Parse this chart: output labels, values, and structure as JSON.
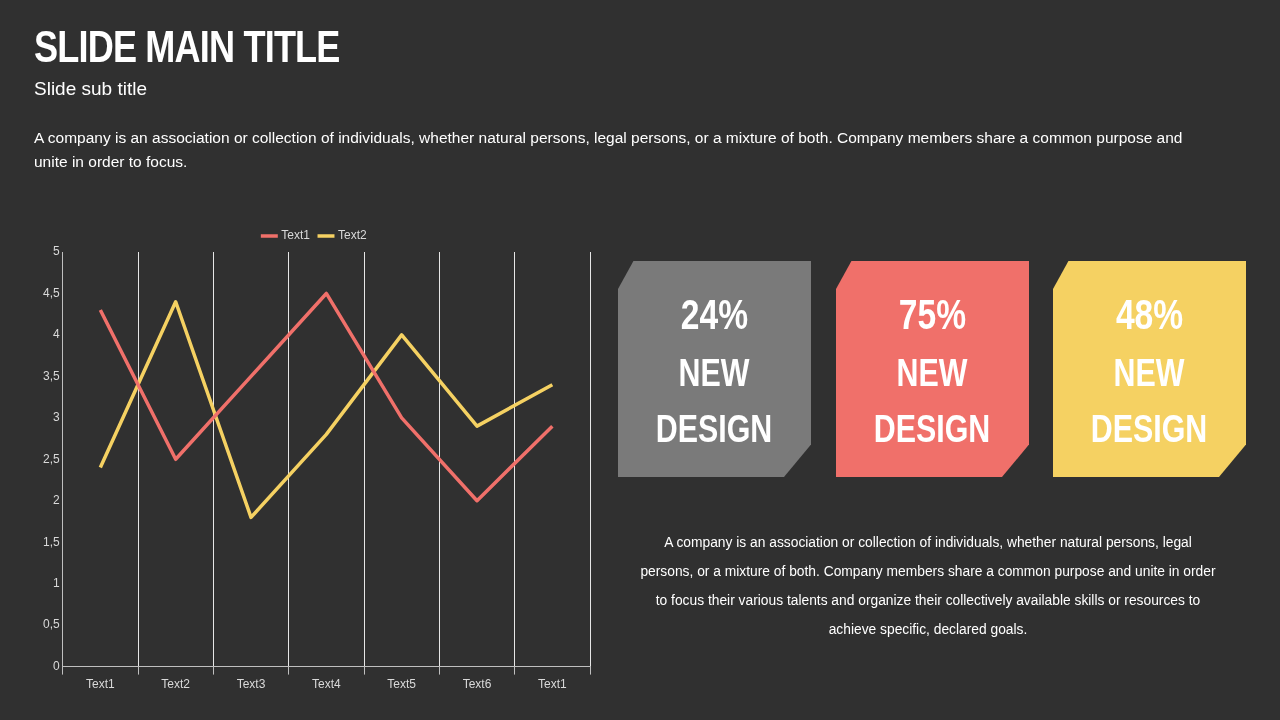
{
  "chart_data": [
    {
      "type": "line",
      "title": "SLIDE MAIN TITLE",
      "subtitle": "Slide sub title",
      "annotations": [
        "A company is an association or collection of individuals, whether natural persons, legal persons, or a mixture of both. Company members share a common purpose and unite in order to focus."
      ],
      "categories": [
        "Text1",
        "Text2",
        "Text3",
        "Text4",
        "Text5",
        "Text6",
        "Text1"
      ],
      "series": [
        {
          "name": "Text1",
          "color": "#f0706a",
          "values": [
            4.3,
            2.5,
            3.5,
            4.5,
            3.0,
            2.0,
            2.9
          ]
        },
        {
          "name": "Text2",
          "color": "#f5d162",
          "values": [
            2.4,
            4.4,
            1.8,
            2.8,
            4.0,
            2.9,
            3.4
          ]
        }
      ],
      "ylim": [
        0,
        5
      ],
      "yticks": [
        0,
        {
          "value": 0.5,
          "label": "0,5"
        },
        1,
        {
          "value": 1.5,
          "label": "1,5"
        },
        2,
        {
          "value": 2.5,
          "label": "2,5"
        },
        3,
        {
          "value": 3.5,
          "label": "3,5"
        },
        4,
        {
          "value": 4.5,
          "label": "4,5"
        },
        5
      ],
      "grid": "x",
      "legend": "top",
      "marker": "none",
      "line_style": "solid"
    },
    {
      "type": "other",
      "categories": [
        "NEW DESIGN",
        "NEW DESIGN",
        "NEW DESIGN"
      ],
      "value_labels": [
        "24%",
        "75%",
        "48%"
      ],
      "colors": [
        "#7a7a7a",
        "#f0706a",
        "#f5d162"
      ],
      "annotations": [
        "A company is an association or collection of individuals, whether natural persons, legal persons, or a mixture of both. Company members share a common purpose and unite in order to focus their various talents and organize their collectively available skills or resources to achieve specific, declared goals."
      ]
    }
  ]
}
